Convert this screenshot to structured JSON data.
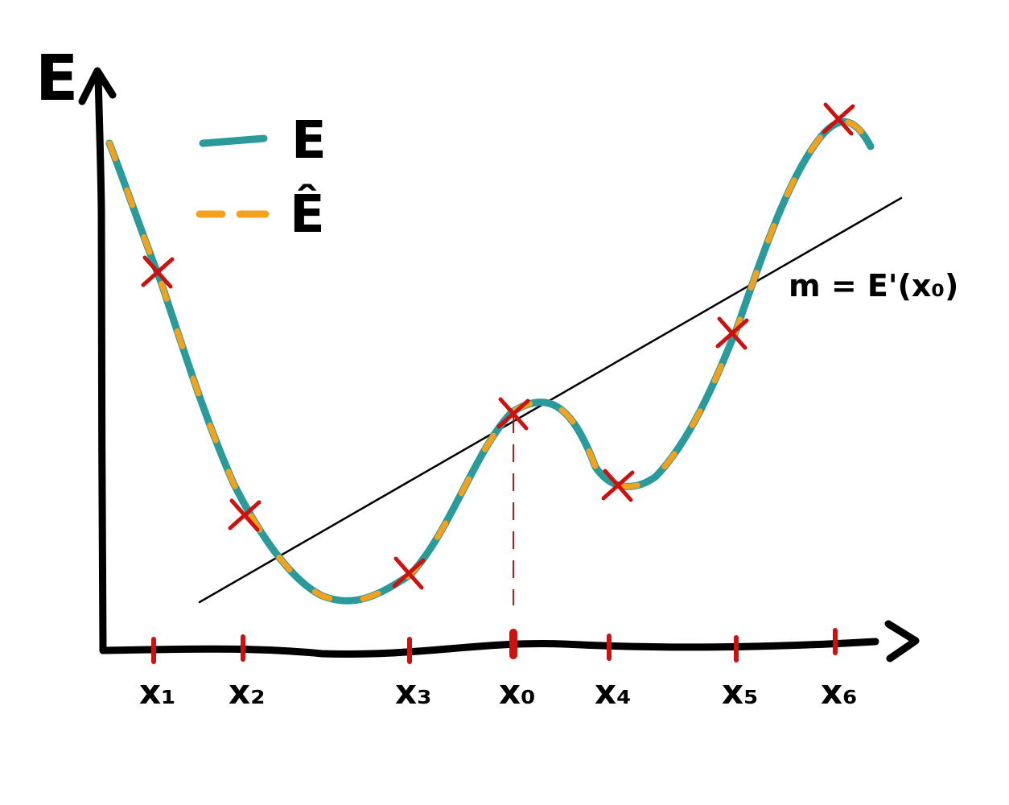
{
  "axis": {
    "y_label": "E"
  },
  "legend": [
    {
      "name": "E",
      "style": "solid",
      "color": "#2a9a9a"
    },
    {
      "name": "Ê",
      "style": "dashed",
      "color": "#f4a21e"
    }
  ],
  "tangent_label": "m = E'(x₀)",
  "sample_points": [
    {
      "label": "x₁"
    },
    {
      "label": "x₂"
    },
    {
      "label": "x₃"
    },
    {
      "label": "x₀",
      "highlight": true
    },
    {
      "label": "x₄"
    },
    {
      "label": "x₅"
    },
    {
      "label": "x₆"
    }
  ],
  "colors": {
    "true_curve": "#2a9a9a",
    "estimate_curve": "#f4a21e",
    "markers": "#cc1111",
    "axes": "#000000"
  }
}
